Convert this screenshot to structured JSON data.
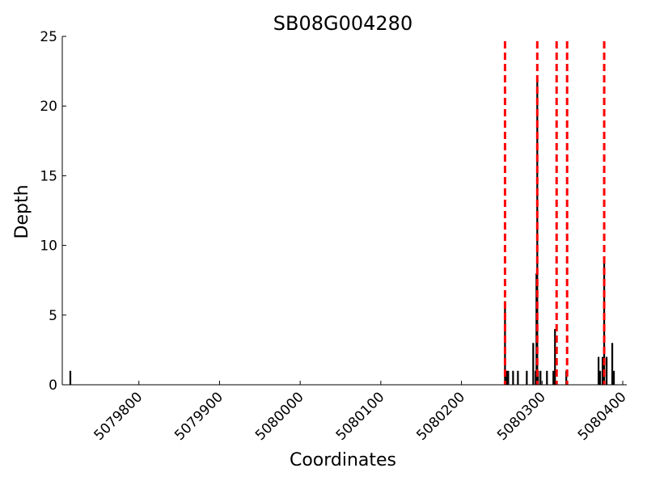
{
  "chart_data": {
    "type": "bar",
    "title": "SB08G004280",
    "xlabel": "Coordinates",
    "ylabel": "Depth",
    "xlim": [
      5079705,
      5080405
    ],
    "ylim": [
      0,
      25
    ],
    "xticks": [
      5079800,
      5079900,
      5080000,
      5080100,
      5080200,
      5080300,
      5080400
    ],
    "xtick_labels": [
      "5079800",
      "5079900",
      "5080000",
      "5080100",
      "5080200",
      "5080300",
      "5080400"
    ],
    "yticks": [
      0,
      5,
      10,
      15,
      20,
      25
    ],
    "ytick_labels": [
      "0",
      "5",
      "10",
      "15",
      "20",
      "25"
    ],
    "grid": false,
    "bar_color": "#000000",
    "bars": [
      {
        "x": 5079715,
        "y": 1
      },
      {
        "x": 5080254,
        "y": 6
      },
      {
        "x": 5080256,
        "y": 1
      },
      {
        "x": 5080258,
        "y": 1
      },
      {
        "x": 5080264,
        "y": 1
      },
      {
        "x": 5080270,
        "y": 1
      },
      {
        "x": 5080281,
        "y": 1
      },
      {
        "x": 5080289,
        "y": 3
      },
      {
        "x": 5080292,
        "y": 1
      },
      {
        "x": 5080293,
        "y": 8
      },
      {
        "x": 5080294,
        "y": 22
      },
      {
        "x": 5080295,
        "y": 1
      },
      {
        "x": 5080298,
        "y": 1
      },
      {
        "x": 5080306,
        "y": 1
      },
      {
        "x": 5080314,
        "y": 1
      },
      {
        "x": 5080316,
        "y": 4
      },
      {
        "x": 5080330,
        "y": 1
      },
      {
        "x": 5080370,
        "y": 2
      },
      {
        "x": 5080372,
        "y": 1
      },
      {
        "x": 5080375,
        "y": 2
      },
      {
        "x": 5080377,
        "y": 9
      },
      {
        "x": 5080380,
        "y": 2
      },
      {
        "x": 5080387,
        "y": 3
      },
      {
        "x": 5080389,
        "y": 1
      }
    ],
    "markers": {
      "color": "#ff0000",
      "style": "dashed",
      "x": [
        5080254,
        5080294,
        5080318,
        5080331,
        5080377
      ]
    }
  }
}
